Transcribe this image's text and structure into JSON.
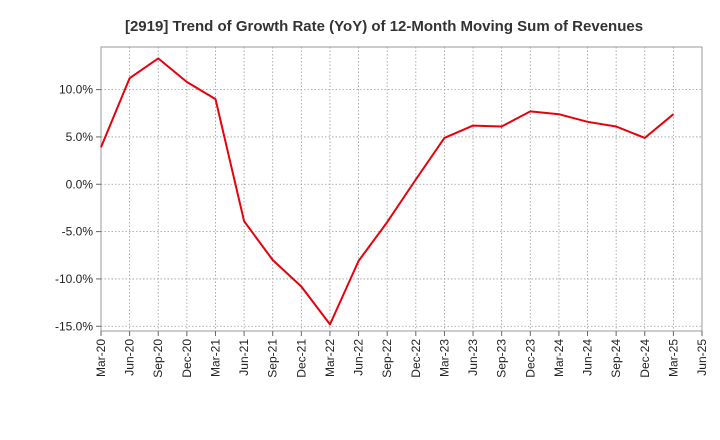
{
  "chart_data": {
    "type": "line",
    "title": "[2919]  Trend of Growth Rate (YoY) of 12-Month Moving Sum of Revenues",
    "xlabel": "",
    "ylabel": "",
    "ylim": [
      -15.5,
      14.5
    ],
    "yticks": [
      10,
      5,
      0,
      -5,
      -10,
      -15
    ],
    "ytick_labels": [
      "10.0%",
      "5.0%",
      "0.0%",
      "-5.0%",
      "-10.0%",
      "-15.0%"
    ],
    "xtick_labels": [
      "Mar-20",
      "Jun-20",
      "Sep-20",
      "Dec-20",
      "Mar-21",
      "Jun-21",
      "Sep-21",
      "Dec-21",
      "Mar-22",
      "Jun-22",
      "Sep-22",
      "Dec-22",
      "Mar-23",
      "Jun-23",
      "Sep-23",
      "Dec-23",
      "Mar-24",
      "Jun-24",
      "Sep-24",
      "Dec-24",
      "Mar-25",
      "Jun-25"
    ],
    "grid": true,
    "series": [
      {
        "color": "#e8000b",
        "x": [
          "Mar-20",
          "Jun-20",
          "Sep-20",
          "Dec-20",
          "Mar-21",
          "Jun-21",
          "Sep-21",
          "Dec-21",
          "Mar-22",
          "Jun-22",
          "Sep-22",
          "Dec-22",
          "Mar-23",
          "Jun-23",
          "Sep-23",
          "Dec-23",
          "Mar-24",
          "Jun-24",
          "Sep-24",
          "Dec-24",
          "Mar-25"
        ],
        "values": [
          3.9,
          11.2,
          13.3,
          10.8,
          9.0,
          -3.9,
          -8.0,
          -10.8,
          -14.8,
          -8.1,
          -4.0,
          0.5,
          4.9,
          6.2,
          6.1,
          7.7,
          7.4,
          6.6,
          6.1,
          4.9,
          7.4
        ]
      }
    ]
  }
}
